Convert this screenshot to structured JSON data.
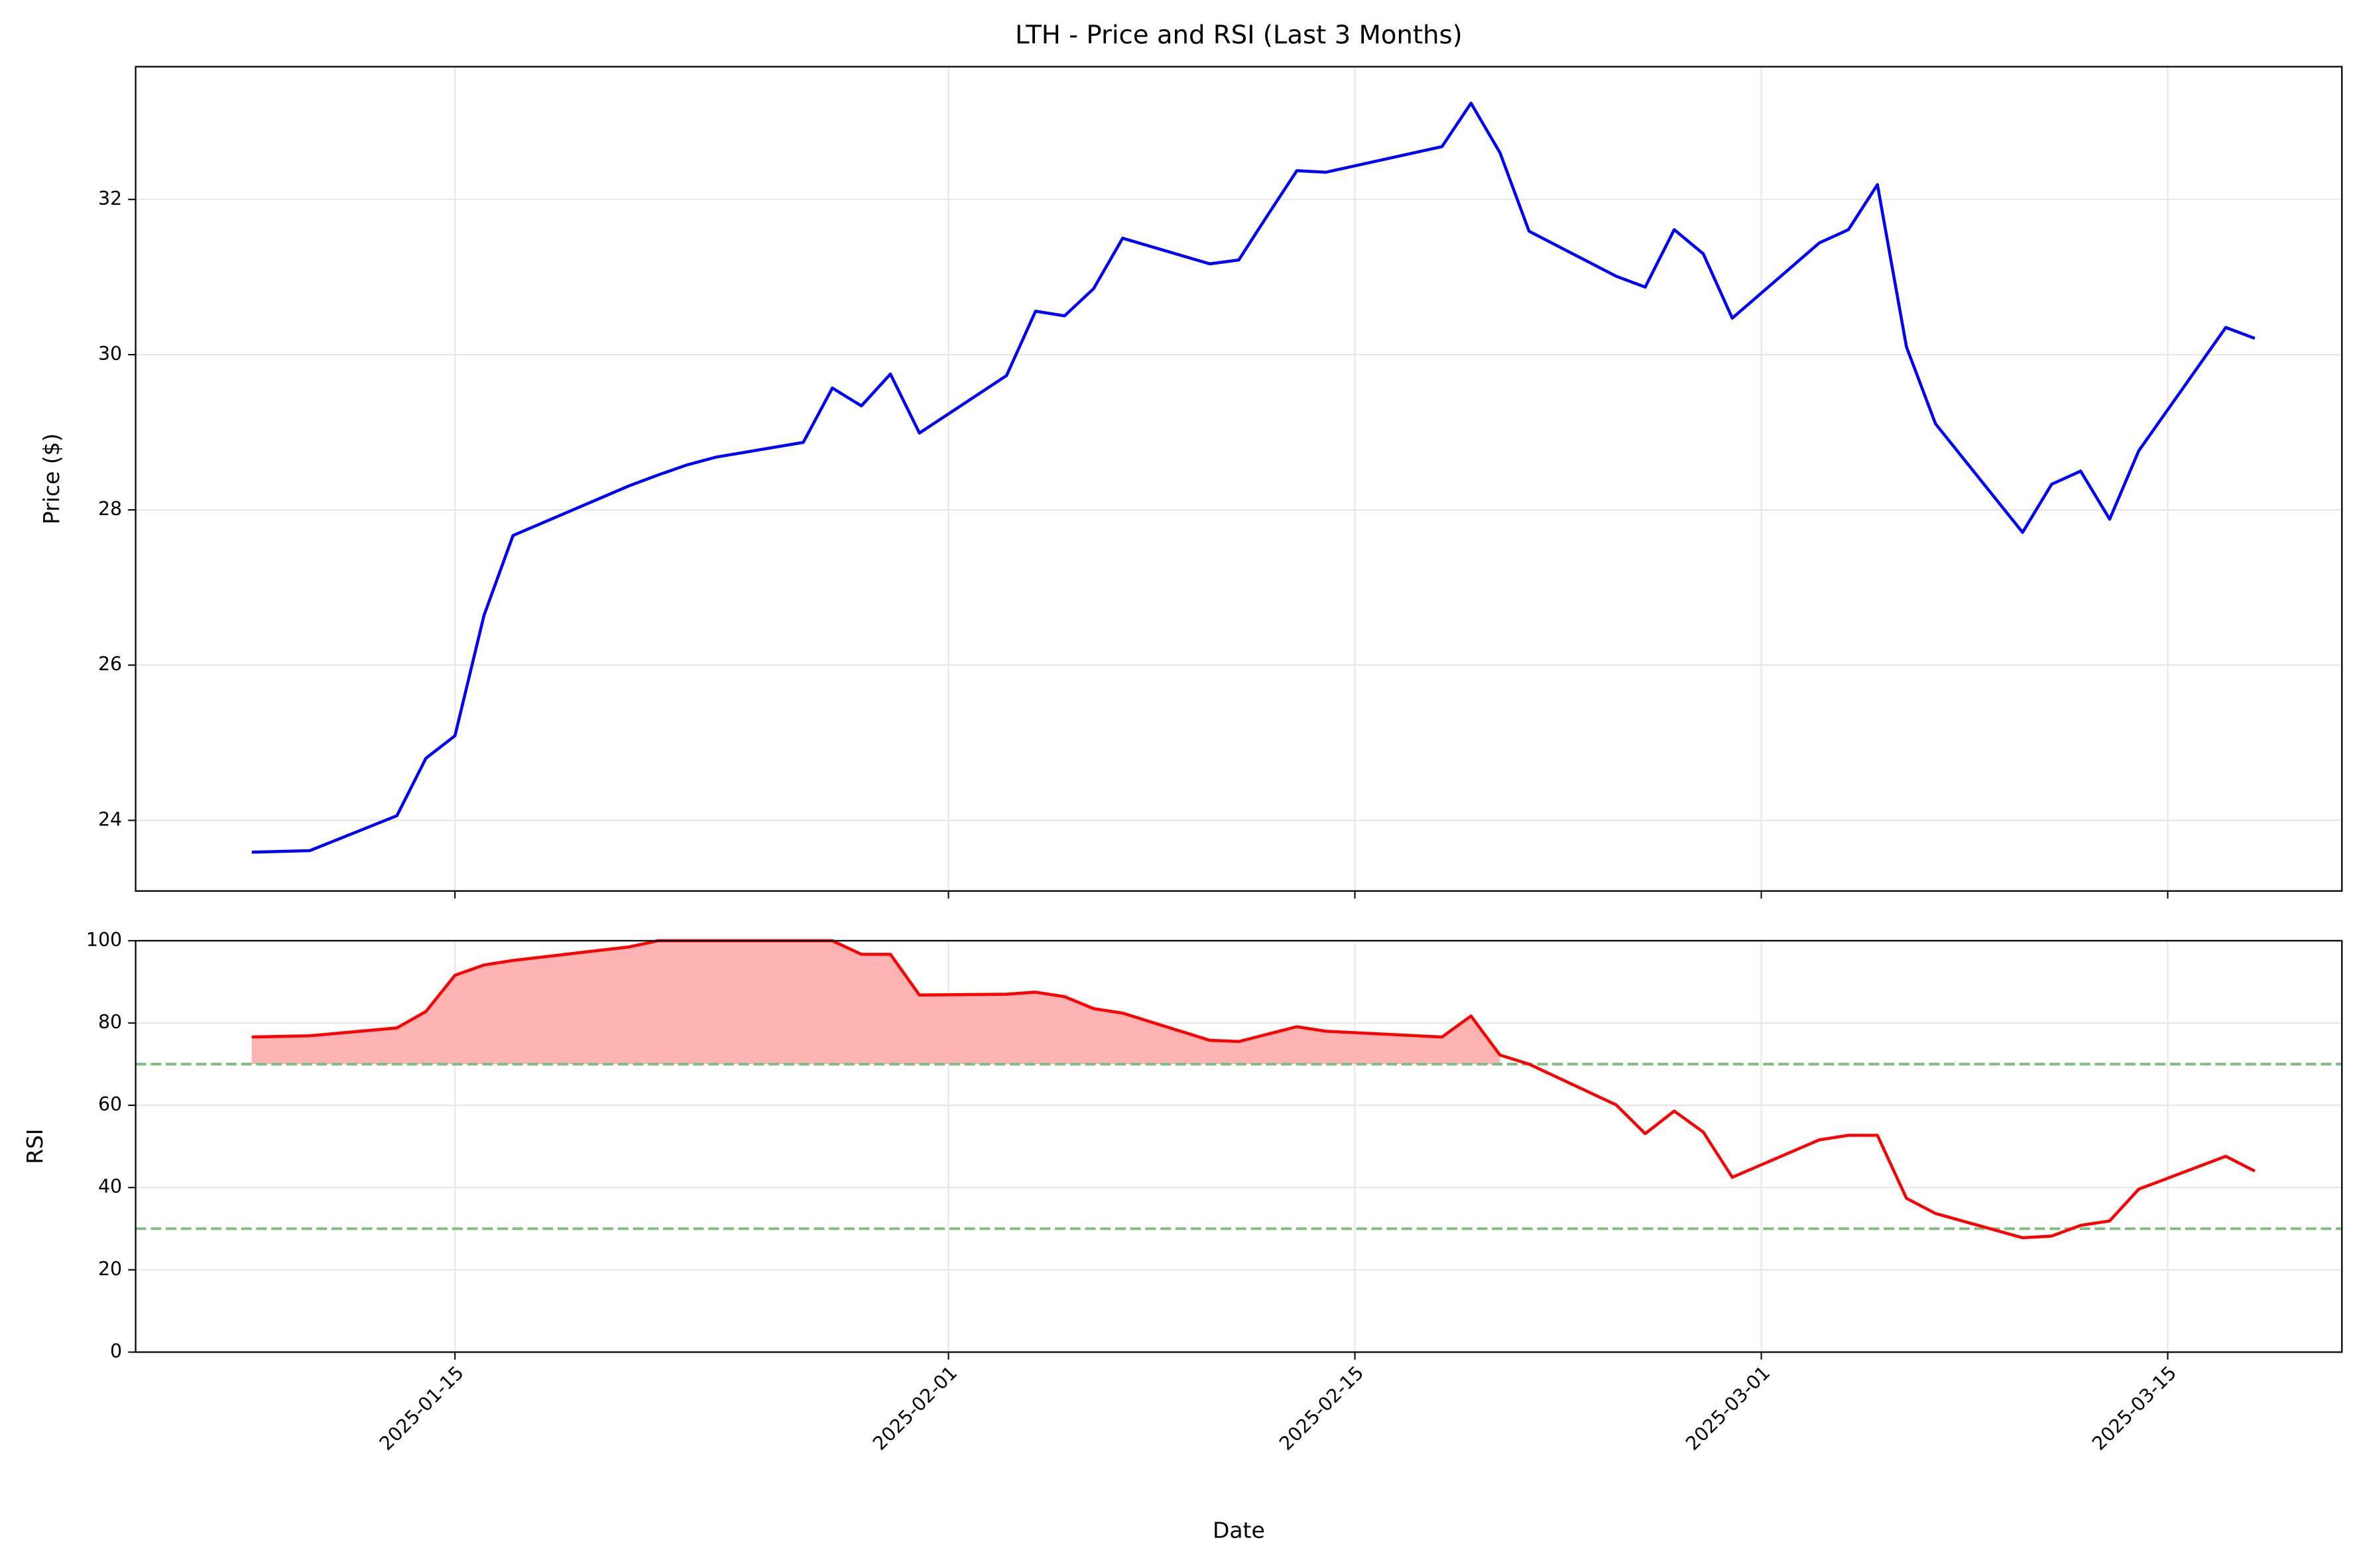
{
  "title": "LTH - Price and RSI (Last 3 Months)",
  "chart_data": [
    {
      "type": "line",
      "ylabel": "Price ($)",
      "x": [
        "2025-01-08",
        "2025-01-10",
        "2025-01-13",
        "2025-01-14",
        "2025-01-15",
        "2025-01-16",
        "2025-01-17",
        "2025-01-21",
        "2025-01-22",
        "2025-01-23",
        "2025-01-24",
        "2025-01-27",
        "2025-01-28",
        "2025-01-29",
        "2025-01-30",
        "2025-01-31",
        "2025-02-03",
        "2025-02-04",
        "2025-02-05",
        "2025-02-06",
        "2025-02-07",
        "2025-02-10",
        "2025-02-11",
        "2025-02-12",
        "2025-02-13",
        "2025-02-14",
        "2025-02-18",
        "2025-02-19",
        "2025-02-20",
        "2025-02-21",
        "2025-02-24",
        "2025-02-25",
        "2025-02-26",
        "2025-02-27",
        "2025-02-28",
        "2025-03-03",
        "2025-03-04",
        "2025-03-05",
        "2025-03-06",
        "2025-03-07",
        "2025-03-10",
        "2025-03-11",
        "2025-03-12",
        "2025-03-13",
        "2025-03-14",
        "2025-03-17",
        "2025-03-18"
      ],
      "series": [
        {
          "color": "#0000ff",
          "values": [
            23.59,
            23.61,
            24.06,
            24.8,
            25.09,
            26.64,
            27.67,
            28.31,
            28.45,
            28.58,
            28.68,
            28.87,
            29.57,
            29.34,
            29.75,
            28.99,
            29.73,
            30.56,
            30.5,
            30.85,
            31.5,
            31.17,
            31.22,
            31.8,
            32.37,
            32.35,
            32.68,
            33.24,
            32.6,
            31.59,
            31.01,
            30.87,
            31.61,
            31.3,
            30.47,
            31.44,
            31.61,
            32.19,
            30.1,
            29.11,
            27.71,
            28.33,
            28.5,
            27.88,
            28.76,
            30.35,
            30.21
          ]
        }
      ],
      "xlim": [
        "2025-01-04",
        "2025-03-21"
      ],
      "xticks": [
        "2025-01-15",
        "2025-02-01",
        "2025-02-15",
        "2025-03-01",
        "2025-03-15"
      ],
      "ylim": [
        23.09,
        33.71
      ],
      "yticks": [
        24,
        26,
        28,
        30,
        32
      ],
      "grid": true
    },
    {
      "type": "line",
      "ylabel": "RSI",
      "xlabel": "Date",
      "x": [
        "2025-01-08",
        "2025-01-10",
        "2025-01-13",
        "2025-01-14",
        "2025-01-15",
        "2025-01-16",
        "2025-01-17",
        "2025-01-21",
        "2025-01-22",
        "2025-01-23",
        "2025-01-24",
        "2025-01-27",
        "2025-01-28",
        "2025-01-29",
        "2025-01-30",
        "2025-01-31",
        "2025-02-03",
        "2025-02-04",
        "2025-02-05",
        "2025-02-06",
        "2025-02-07",
        "2025-02-10",
        "2025-02-11",
        "2025-02-12",
        "2025-02-13",
        "2025-02-14",
        "2025-02-18",
        "2025-02-19",
        "2025-02-20",
        "2025-02-21",
        "2025-02-24",
        "2025-02-25",
        "2025-02-26",
        "2025-02-27",
        "2025-02-28",
        "2025-03-03",
        "2025-03-04",
        "2025-03-05",
        "2025-03-06",
        "2025-03-07",
        "2025-03-10",
        "2025-03-11",
        "2025-03-12",
        "2025-03-13",
        "2025-03-14",
        "2025-03-17",
        "2025-03-18"
      ],
      "series": [
        {
          "color": "#ff0000",
          "values": [
            76.6,
            76.9,
            78.8,
            82.8,
            91.6,
            94.1,
            95.2,
            98.5,
            100,
            100,
            100,
            100,
            100,
            96.7,
            96.7,
            86.8,
            87.0,
            87.5,
            86.4,
            83.5,
            82.4,
            75.8,
            75.5,
            77.3,
            79.1,
            78.0,
            76.6,
            81.7,
            72.2,
            70.0,
            60.1,
            53.1,
            58.6,
            53.5,
            42.5,
            51.6,
            52.7,
            52.7,
            37.4,
            33.7,
            27.8,
            28.2,
            30.8,
            31.9,
            39.6,
            47.6,
            44.0
          ]
        }
      ],
      "fill_threshold": 70,
      "fill_color": "#ffb3b3",
      "hlines": [
        {
          "value": 70,
          "color": "#7fbf7f"
        },
        {
          "value": 30,
          "color": "#7fbf7f"
        }
      ],
      "xlim": [
        "2025-01-04",
        "2025-03-21"
      ],
      "xticks": [
        "2025-01-15",
        "2025-02-01",
        "2025-02-15",
        "2025-03-01",
        "2025-03-15"
      ],
      "ylim": [
        0,
        100
      ],
      "yticks": [
        0,
        20,
        40,
        60,
        80,
        100
      ],
      "grid": true
    }
  ]
}
